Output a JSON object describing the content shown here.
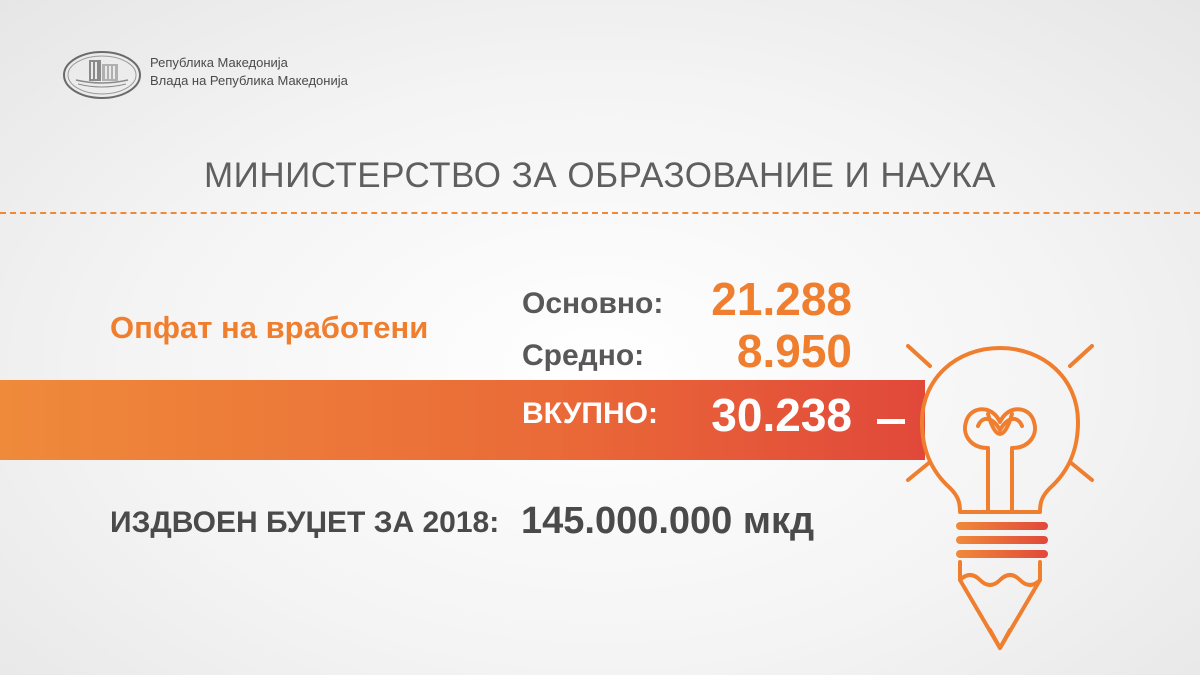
{
  "header": {
    "org_line1": "Република Македонија",
    "org_line2": "Влада на Република Македонија"
  },
  "title": "МИНИСТЕРСТВО ЗА ОБРАЗОВАНИЕ И НАУКА",
  "employees": {
    "label": "Опфат на вработени",
    "rows": [
      {
        "label": "Основно:",
        "value": "21.288"
      },
      {
        "label": "Средно:",
        "value": "8.950"
      }
    ],
    "total": {
      "label": "ВКУПНО:",
      "value": "30.238"
    }
  },
  "budget": {
    "label": "ИЗДВОЕН БУЏЕТ ЗА 2018:",
    "value": "145.000.000 мкд"
  },
  "colors": {
    "accent": "#ef7f2f",
    "band_start": "#ef8a3a",
    "band_end": "#e1483a",
    "text_dark": "#4a4a4a",
    "text_gray": "#5f5f5f"
  },
  "icons": [
    "government-building-logo",
    "lightbulb-pencil-icon"
  ]
}
